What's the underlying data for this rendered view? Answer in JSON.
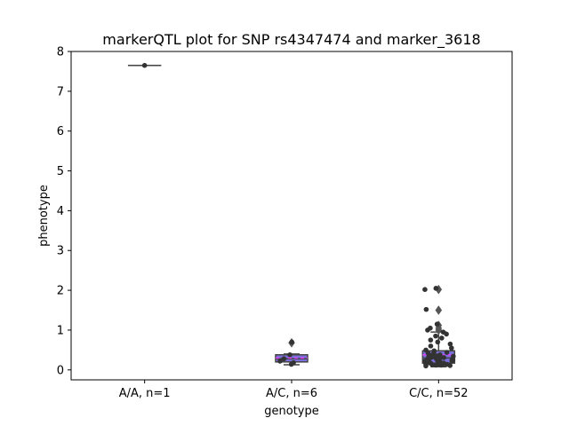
{
  "chart_data": {
    "type": "box",
    "title": "markerQTL plot for SNP rs4347474 and marker_3618",
    "xlabel": "genotype",
    "ylabel": "phenotype",
    "ylim": [
      -0.25,
      8.0
    ],
    "yticks": [
      0,
      1,
      2,
      3,
      4,
      5,
      6,
      7,
      8
    ],
    "categories": [
      "A/A, n=1",
      "A/C, n=6",
      "C/C, n=52"
    ],
    "grid": false,
    "box_color": "#7b6fdb",
    "mean_color": "#e040fb",
    "point_color": "#333333",
    "line_color": "#444444",
    "boxes": [
      {
        "category": "A/A, n=1",
        "q1": 7.65,
        "median": 7.65,
        "q3": 7.65,
        "whisker_low": 7.65,
        "whisker_high": 7.65,
        "mean": 7.65,
        "outliers": []
      },
      {
        "category": "A/C, n=6",
        "q1": 0.2,
        "median": 0.28,
        "q3": 0.38,
        "whisker_low": 0.13,
        "whisker_high": 0.4,
        "mean": 0.3,
        "outliers": [
          0.68
        ]
      },
      {
        "category": "C/C, n=52",
        "q1": 0.17,
        "median": 0.3,
        "q3": 0.48,
        "whisker_low": 0.08,
        "whisker_high": 0.95,
        "mean": 0.38,
        "outliers": [
          1.0,
          1.05,
          1.12,
          1.5,
          2.02
        ]
      }
    ],
    "points": [
      {
        "category": "A/A, n=1",
        "values": [
          7.65
        ]
      },
      {
        "category": "A/C, n=6",
        "values": [
          0.14,
          0.18,
          0.22,
          0.28,
          0.38,
          0.7
        ]
      },
      {
        "category": "C/C, n=52",
        "values": [
          0.1,
          0.11,
          0.12,
          0.12,
          0.13,
          0.14,
          0.14,
          0.15,
          0.16,
          0.17,
          0.17,
          0.18,
          0.19,
          0.2,
          0.21,
          0.22,
          0.23,
          0.24,
          0.25,
          0.26,
          0.27,
          0.28,
          0.29,
          0.3,
          0.31,
          0.32,
          0.33,
          0.34,
          0.35,
          0.36,
          0.38,
          0.4,
          0.42,
          0.44,
          0.46,
          0.48,
          0.5,
          0.55,
          0.6,
          0.65,
          0.7,
          0.75,
          0.8,
          0.85,
          0.9,
          0.95,
          1.0,
          1.05,
          1.15,
          1.52,
          2.02,
          2.05
        ]
      }
    ]
  }
}
